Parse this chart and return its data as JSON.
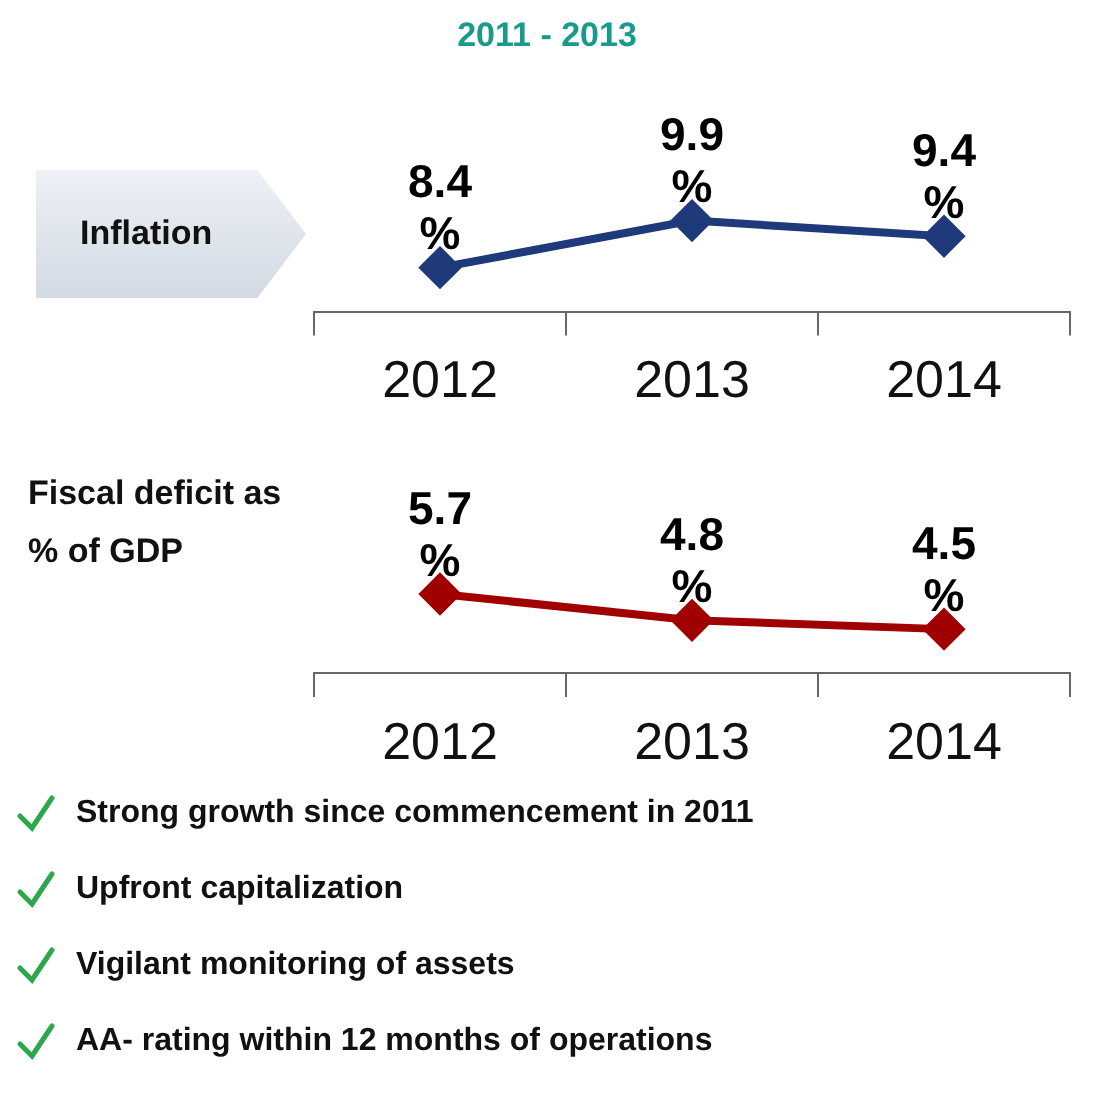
{
  "chart_data": [
    {
      "type": "line",
      "title": "2011 - 2013",
      "ylabel": "Inflation",
      "categories": [
        "2012",
        "2013",
        "2014"
      ],
      "series": [
        {
          "color": "#1f3a7a",
          "values": [
            8.4,
            9.9,
            9.4
          ],
          "value_labels": [
            "8.4 %",
            "9.9 %",
            "9.4 %"
          ]
        }
      ],
      "tick_labels": "x",
      "grid": false,
      "legend": false,
      "marker": "diamond",
      "line_style": "solid"
    },
    {
      "type": "line",
      "ylabel": "Fiscal deficit as % of GDP",
      "categories": [
        "2012",
        "2013",
        "2014"
      ],
      "series": [
        {
          "color": "#a00000",
          "values": [
            5.7,
            4.8,
            4.5
          ],
          "value_labels": [
            "5.7 %",
            "4.8 %",
            "4.5 %"
          ]
        }
      ],
      "tick_labels": "x",
      "grid": false,
      "legend": false,
      "marker": "diamond",
      "line_style": "solid",
      "annotations": [
        "Strong growth since commencement in 2011",
        "Upfront capitalization",
        "Vigilant monitoring of assets",
        "AA- rating within 12 months of operations"
      ]
    }
  ]
}
